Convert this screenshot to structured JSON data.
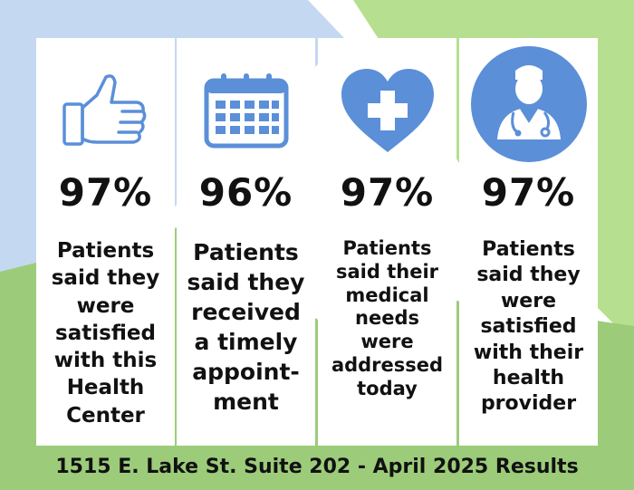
{
  "colors": {
    "accent_blue": "#5b8fd8",
    "light_blue": "#c5d8f2",
    "light_green": "#b6e08f",
    "mid_green": "#9ccc7a",
    "text": "#111111"
  },
  "cards": [
    {
      "icon": "thumbs-up-icon",
      "stat": "97%",
      "text": "Patients\nsaid they\nwere\nsatisfied\nwith this\nHealth\nCenter"
    },
    {
      "icon": "calendar-icon",
      "stat": "96%",
      "text": "Patients\nsaid they\nreceived\na timely\nappoint-\nment"
    },
    {
      "icon": "heart-cross-icon",
      "stat": "97%",
      "text": "Patients\nsaid their\nmedical\nneeds\nwere\naddressed\ntoday"
    },
    {
      "icon": "doctor-icon",
      "stat": "97%",
      "text": "Patients\nsaid they\nwere\nsatisfied\nwith their\nhealth\nprovider"
    }
  ],
  "footer": "1515 E. Lake St. Suite 202 - April 2025 Results"
}
